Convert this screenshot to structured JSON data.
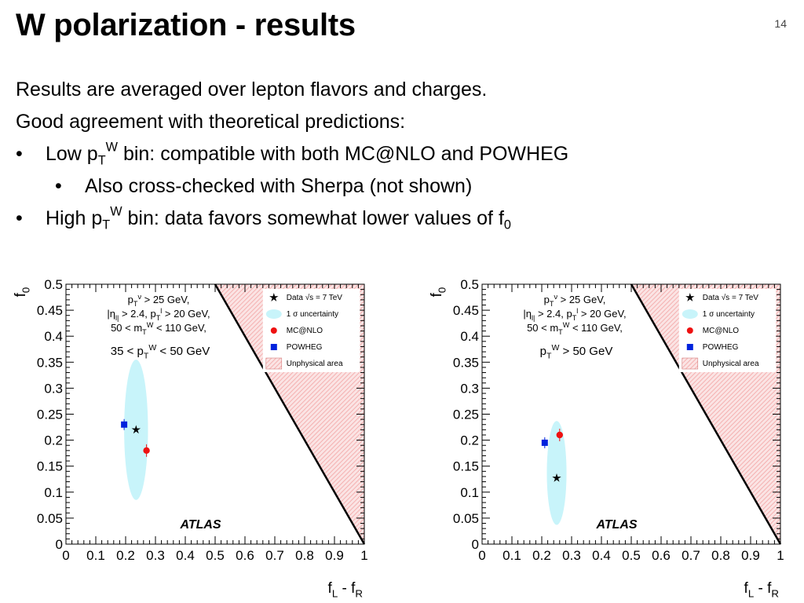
{
  "slide": {
    "title": "W polarization - results",
    "number": "14",
    "lines": [
      "Results are averaged over lepton flavors and charges.",
      "Good agreement with theoretical predictions:"
    ],
    "bullet1": {
      "pre": "Low p",
      "sub": "T",
      "sup": "W",
      "post": " bin: compatible with both MC@NLO and POWHEG"
    },
    "subbullet": "Also cross-checked with Sherpa (not shown)",
    "bullet2": {
      "pre": "High p",
      "sub": "T",
      "sup": "W",
      "post": " bin: data favors somewhat lower values of f",
      "sub2": "0"
    }
  },
  "chart_data": [
    {
      "type": "scatter",
      "xlabel": "f_L - f_R",
      "ylabel": "f_0",
      "xlim": [
        0,
        1
      ],
      "ylim": [
        0,
        0.5
      ],
      "xticks": [
        "0",
        "0.1",
        "0.2",
        "0.3",
        "0.4",
        "0.5",
        "0.6",
        "0.7",
        "0.8",
        "0.9",
        "1"
      ],
      "yticks": [
        "0",
        "0.05",
        "0.1",
        "0.15",
        "0.2",
        "0.25",
        "0.3",
        "0.35",
        "0.4",
        "0.45",
        "0.5"
      ],
      "grid": false,
      "legend": [
        "Data √s = 7 TeV",
        "1 σ uncertainty",
        "MC@NLO",
        "POWHEG",
        "Unphysical area"
      ],
      "cuts": [
        "p_T^ν > 25 GeV,",
        "|η_l| > 2.4, p_T^l > 20 GeV,",
        "50 < m_T^W < 110 GeV,"
      ],
      "bin": "35 < p_T^W < 50 GeV",
      "experiment": "ATLAS",
      "data_point": {
        "x": 0.235,
        "y": 0.22
      },
      "ellipse": {
        "cx": 0.235,
        "cy": 0.22,
        "rx": 0.04,
        "ry": 0.135
      },
      "mcatnlo": {
        "x": 0.27,
        "y": 0.18
      },
      "powheg": {
        "x": 0.195,
        "y": 0.23
      },
      "colors": {
        "ellipse": "#c8f4fa",
        "mcatnlo": "#ee1111",
        "powheg": "#0022dd",
        "unphysical": "#f4b0b0"
      }
    },
    {
      "type": "scatter",
      "xlabel": "f_L - f_R",
      "ylabel": "f_0",
      "xlim": [
        0,
        1
      ],
      "ylim": [
        0,
        0.5
      ],
      "xticks": [
        "0",
        "0.1",
        "0.2",
        "0.3",
        "0.4",
        "0.5",
        "0.6",
        "0.7",
        "0.8",
        "0.9",
        "1"
      ],
      "yticks": [
        "0",
        "0.05",
        "0.1",
        "0.15",
        "0.2",
        "0.25",
        "0.3",
        "0.35",
        "0.4",
        "0.45",
        "0.5"
      ],
      "grid": false,
      "legend": [
        "Data √s = 7 TeV",
        "1 σ uncertainty",
        "MC@NLO",
        "POWHEG",
        "Unphysical area"
      ],
      "cuts": [
        "p_T^ν > 25 GeV,",
        "|η_l| > 2.4, p_T^l > 20 GeV,",
        "50 < m_T^W < 110 GeV,"
      ],
      "bin": "p_T^W > 50 GeV",
      "experiment": "ATLAS",
      "data_point": {
        "x": 0.25,
        "y": 0.127
      },
      "ellipse": {
        "cx": 0.25,
        "cy": 0.137,
        "rx": 0.033,
        "ry": 0.1
      },
      "mcatnlo": {
        "x": 0.26,
        "y": 0.21
      },
      "powheg": {
        "x": 0.21,
        "y": 0.195
      },
      "colors": {
        "ellipse": "#c8f4fa",
        "mcatnlo": "#ee1111",
        "powheg": "#0022dd",
        "unphysical": "#f4b0b0"
      }
    }
  ]
}
